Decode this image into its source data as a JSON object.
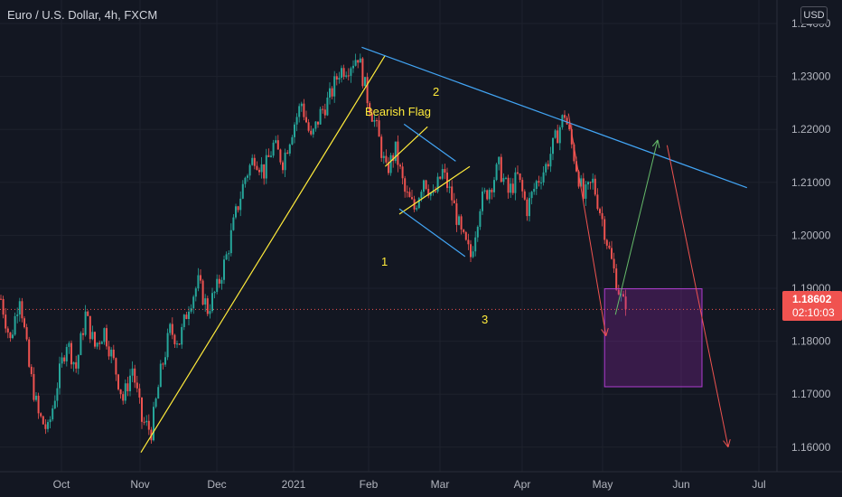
{
  "header": {
    "title": "Euro / U.S. Dollar, 4h, FXCM",
    "currency_button": "USD"
  },
  "price_tag": {
    "price": "1.18602",
    "countdown": "02:10:03",
    "color": "#f05350"
  },
  "colors": {
    "background": "#131722",
    "up": "#26a69a",
    "down": "#ef5350",
    "grid": "#1e222d"
  },
  "chart_data": {
    "type": "candlestick",
    "title": "Euro / U.S. Dollar, 4h, FXCM",
    "x_ticks": [
      "Oct",
      "Nov",
      "Dec",
      "2021",
      "Feb",
      "Mar",
      "Apr",
      "May",
      "Jun",
      "Jul"
    ],
    "y_ticks": [
      "1.16000",
      "1.17000",
      "1.18000",
      "1.19000",
      "1.20000",
      "1.21000",
      "1.22000",
      "1.23000",
      "1.24000"
    ],
    "ylim": [
      1.155,
      1.2445
    ],
    "last_price": 1.18602,
    "price_path": [
      [
        0,
        1.188
      ],
      [
        2,
        1.18
      ],
      [
        4,
        1.189
      ],
      [
        6,
        1.175
      ],
      [
        8,
        1.166
      ],
      [
        10,
        1.163
      ],
      [
        12,
        1.172
      ],
      [
        14,
        1.18
      ],
      [
        16,
        1.175
      ],
      [
        18,
        1.185
      ],
      [
        20,
        1.179
      ],
      [
        22,
        1.182
      ],
      [
        24,
        1.176
      ],
      [
        26,
        1.169
      ],
      [
        28,
        1.175
      ],
      [
        30,
        1.165
      ],
      [
        32,
        1.163
      ],
      [
        34,
        1.174
      ],
      [
        36,
        1.182
      ],
      [
        38,
        1.18
      ],
      [
        40,
        1.187
      ],
      [
        42,
        1.191
      ],
      [
        44,
        1.186
      ],
      [
        46,
        1.19
      ],
      [
        48,
        1.196
      ],
      [
        50,
        1.204
      ],
      [
        52,
        1.211
      ],
      [
        54,
        1.215
      ],
      [
        56,
        1.212
      ],
      [
        58,
        1.217
      ],
      [
        60,
        1.214
      ],
      [
        62,
        1.22
      ],
      [
        64,
        1.225
      ],
      [
        66,
        1.218
      ],
      [
        68,
        1.223
      ],
      [
        70,
        1.226
      ],
      [
        72,
        1.231
      ],
      [
        74,
        1.232
      ],
      [
        76,
        1.234
      ],
      [
        78,
        1.226
      ],
      [
        80,
        1.22
      ],
      [
        82,
        1.212
      ],
      [
        84,
        1.216
      ],
      [
        86,
        1.208
      ],
      [
        88,
        1.205
      ],
      [
        90,
        1.211
      ],
      [
        92,
        1.207
      ],
      [
        94,
        1.212
      ],
      [
        96,
        1.207
      ],
      [
        98,
        1.2
      ],
      [
        100,
        1.196
      ],
      [
        102,
        1.206
      ],
      [
        104,
        1.209
      ],
      [
        106,
        1.213
      ],
      [
        108,
        1.208
      ],
      [
        110,
        1.211
      ],
      [
        112,
        1.205
      ],
      [
        114,
        1.21
      ],
      [
        116,
        1.213
      ],
      [
        118,
        1.218
      ],
      [
        120,
        1.223
      ],
      [
        122,
        1.215
      ],
      [
        124,
        1.207
      ],
      [
        126,
        1.21
      ],
      [
        128,
        1.203
      ],
      [
        130,
        1.195
      ],
      [
        132,
        1.188
      ],
      [
        133,
        1.186
      ]
    ],
    "annotations": [
      {
        "id": "bearish-flag",
        "text": "Bearish Flag",
        "color": "#ffeb3b"
      },
      {
        "id": "point-1",
        "text": "1",
        "color": "#ffeb3b"
      },
      {
        "id": "point-2",
        "text": "2",
        "color": "#ffeb3b"
      },
      {
        "id": "point-3",
        "text": "3",
        "color": "#ffeb3b"
      }
    ],
    "trendlines": [
      {
        "name": "yellow-uptrend",
        "color": "#ffeb3b",
        "from": [
          30,
          1.159
        ],
        "to": [
          82,
          1.234
        ]
      },
      {
        "name": "blue-downtrend",
        "color": "#42a5f5",
        "from": [
          77,
          1.2355
        ],
        "to": [
          159,
          1.209
        ]
      },
      {
        "name": "flag-upper",
        "color": "#ffeb3b",
        "from": [
          82,
          1.213
        ],
        "to": [
          91,
          1.2205
        ]
      },
      {
        "name": "flag-lower",
        "color": "#ffeb3b",
        "from": [
          85,
          1.204
        ],
        "to": [
          100,
          1.213
        ]
      },
      {
        "name": "wedge-top",
        "color": "#42a5f5",
        "from": [
          86,
          1.221
        ],
        "to": [
          97,
          1.214
        ]
      },
      {
        "name": "wedge-bottom",
        "color": "#42a5f5",
        "from": [
          85,
          1.205
        ],
        "to": [
          99,
          1.196
        ]
      }
    ],
    "arrows": [
      {
        "name": "red-arrow-down-to-3",
        "color": "#ef5350",
        "from": [
          121,
          1.223
        ],
        "to": [
          129,
          1.181
        ]
      },
      {
        "name": "green-arrow-up",
        "color": "#66bb6a",
        "from": [
          131,
          1.185
        ],
        "to": [
          140,
          1.218
        ]
      },
      {
        "name": "red-arrow-down-final",
        "color": "#ef5350",
        "from": [
          142,
          1.217
        ],
        "to": [
          155,
          1.16
        ]
      }
    ],
    "zone": {
      "name": "demand-zone",
      "x": [
        126,
        145
      ],
      "y": [
        1.1714,
        1.1899
      ],
      "color": "#9c27b0"
    }
  }
}
